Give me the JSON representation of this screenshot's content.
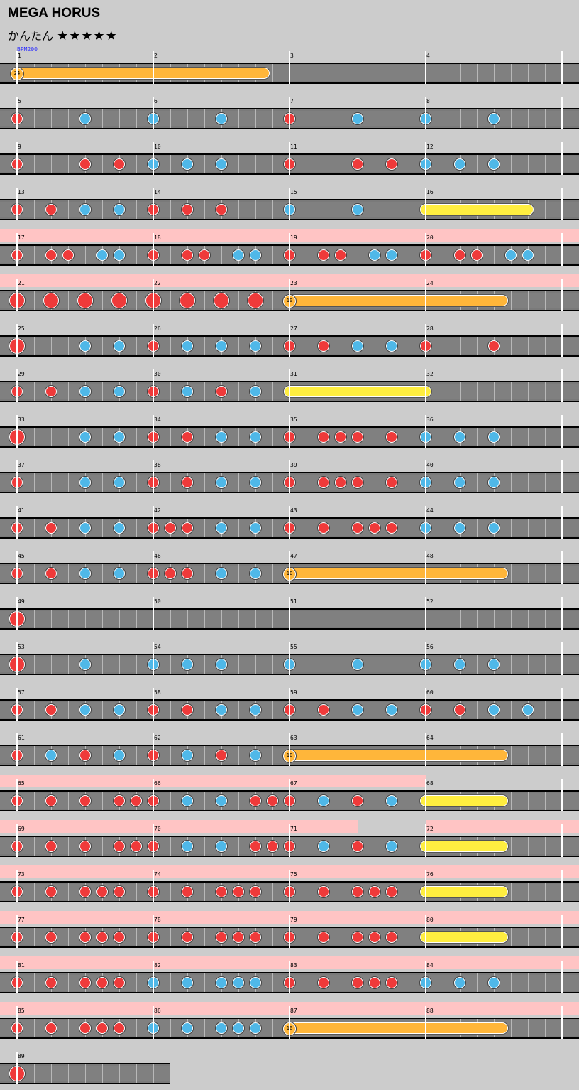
{
  "song": {
    "title": "MEGA HORUS",
    "difficulty": "かんたん",
    "stars": "★★★★★",
    "bpm_label": "BPM200"
  },
  "rows": [
    {
      "m": [
        1,
        2,
        3,
        4
      ],
      "gogo": [],
      "notes": [],
      "rolls": [
        {
          "type": "balloon",
          "s": 0,
          "e": 14.5,
          "count": "24"
        }
      ]
    },
    {
      "m": [
        5,
        6,
        7,
        8
      ],
      "gogo": [],
      "notes": [
        [
          0,
          "d"
        ],
        [
          4,
          "k"
        ],
        [
          8,
          "k"
        ],
        [
          12,
          "k"
        ],
        [
          16,
          "d"
        ],
        [
          20,
          "k"
        ],
        [
          24,
          "k"
        ],
        [
          28,
          "k"
        ]
      ],
      "rolls": []
    },
    {
      "m": [
        9,
        10,
        11,
        12
      ],
      "gogo": [],
      "notes": [
        [
          0,
          "d"
        ],
        [
          4,
          "d"
        ],
        [
          6,
          "d"
        ],
        [
          8,
          "k"
        ],
        [
          10,
          "k"
        ],
        [
          12,
          "k"
        ],
        [
          16,
          "d"
        ],
        [
          20,
          "d"
        ],
        [
          22,
          "d"
        ],
        [
          24,
          "k"
        ],
        [
          26,
          "k"
        ],
        [
          28,
          "k"
        ]
      ],
      "rolls": []
    },
    {
      "m": [
        13,
        14,
        15,
        16
      ],
      "gogo": [],
      "notes": [
        [
          0,
          "d"
        ],
        [
          2,
          "d"
        ],
        [
          4,
          "k"
        ],
        [
          6,
          "k"
        ],
        [
          8,
          "d"
        ],
        [
          10,
          "d"
        ],
        [
          12,
          "d"
        ],
        [
          16,
          "k"
        ],
        [
          20,
          "k"
        ]
      ],
      "rolls": [
        {
          "type": "drum",
          "s": 24,
          "e": 30
        }
      ]
    },
    {
      "m": [
        17,
        18,
        19,
        20
      ],
      "gogo": [
        [
          0,
          34
        ]
      ],
      "notes": [
        [
          0,
          "d"
        ],
        [
          2,
          "d"
        ],
        [
          3,
          "d"
        ],
        [
          5,
          "k"
        ],
        [
          6,
          "k"
        ],
        [
          8,
          "d"
        ],
        [
          10,
          "d"
        ],
        [
          11,
          "d"
        ],
        [
          13,
          "k"
        ],
        [
          14,
          "k"
        ],
        [
          16,
          "d"
        ],
        [
          18,
          "d"
        ],
        [
          19,
          "d"
        ],
        [
          21,
          "k"
        ],
        [
          22,
          "k"
        ],
        [
          24,
          "d"
        ],
        [
          26,
          "d"
        ],
        [
          27,
          "d"
        ],
        [
          29,
          "k"
        ],
        [
          30,
          "k"
        ]
      ],
      "rolls": []
    },
    {
      "m": [
        21,
        22,
        23,
        24
      ],
      "gogo": [
        [
          0,
          34
        ]
      ],
      "notes": [
        [
          0,
          "D"
        ],
        [
          2,
          "D"
        ],
        [
          4,
          "D"
        ],
        [
          6,
          "D"
        ],
        [
          8,
          "D"
        ],
        [
          10,
          "D"
        ],
        [
          12,
          "D"
        ],
        [
          14,
          "D"
        ]
      ],
      "rolls": [
        {
          "type": "balloon",
          "s": 16,
          "e": 28.5,
          "count": "10"
        }
      ]
    },
    {
      "m": [
        25,
        26,
        27,
        28
      ],
      "gogo": [],
      "notes": [
        [
          0,
          "D"
        ],
        [
          4,
          "k"
        ],
        [
          6,
          "k"
        ],
        [
          8,
          "d"
        ],
        [
          10,
          "k"
        ],
        [
          12,
          "k"
        ],
        [
          14,
          "k"
        ],
        [
          16,
          "d"
        ],
        [
          18,
          "d"
        ],
        [
          20,
          "k"
        ],
        [
          22,
          "k"
        ],
        [
          24,
          "d"
        ],
        [
          28,
          "d"
        ]
      ],
      "rolls": []
    },
    {
      "m": [
        29,
        30,
        31,
        32
      ],
      "gogo": [],
      "notes": [
        [
          0,
          "d"
        ],
        [
          2,
          "d"
        ],
        [
          4,
          "k"
        ],
        [
          6,
          "k"
        ],
        [
          8,
          "d"
        ],
        [
          10,
          "k"
        ],
        [
          12,
          "d"
        ],
        [
          14,
          "k"
        ]
      ],
      "rolls": [
        {
          "type": "drum",
          "s": 16,
          "e": 24
        }
      ]
    },
    {
      "m": [
        33,
        34,
        35,
        36
      ],
      "gogo": [],
      "notes": [
        [
          0,
          "D"
        ],
        [
          4,
          "k"
        ],
        [
          6,
          "k"
        ],
        [
          8,
          "d"
        ],
        [
          10,
          "d"
        ],
        [
          12,
          "k"
        ],
        [
          14,
          "k"
        ],
        [
          16,
          "d"
        ],
        [
          18,
          "d"
        ],
        [
          19,
          "d"
        ],
        [
          20,
          "d"
        ],
        [
          22,
          "d"
        ],
        [
          24,
          "k"
        ],
        [
          26,
          "k"
        ],
        [
          28,
          "k"
        ]
      ],
      "rolls": []
    },
    {
      "m": [
        37,
        38,
        39,
        40
      ],
      "gogo": [],
      "notes": [
        [
          0,
          "d"
        ],
        [
          4,
          "k"
        ],
        [
          6,
          "k"
        ],
        [
          8,
          "d"
        ],
        [
          10,
          "d"
        ],
        [
          12,
          "k"
        ],
        [
          14,
          "k"
        ],
        [
          16,
          "d"
        ],
        [
          18,
          "d"
        ],
        [
          19,
          "d"
        ],
        [
          20,
          "d"
        ],
        [
          22,
          "d"
        ],
        [
          24,
          "k"
        ],
        [
          26,
          "k"
        ],
        [
          28,
          "k"
        ]
      ],
      "rolls": []
    },
    {
      "m": [
        41,
        42,
        43,
        44
      ],
      "gogo": [],
      "notes": [
        [
          0,
          "d"
        ],
        [
          2,
          "d"
        ],
        [
          4,
          "k"
        ],
        [
          6,
          "k"
        ],
        [
          8,
          "d"
        ],
        [
          9,
          "d"
        ],
        [
          10,
          "d"
        ],
        [
          12,
          "k"
        ],
        [
          14,
          "k"
        ],
        [
          16,
          "d"
        ],
        [
          18,
          "d"
        ],
        [
          20,
          "d"
        ],
        [
          21,
          "d"
        ],
        [
          22,
          "d"
        ],
        [
          24,
          "k"
        ],
        [
          26,
          "k"
        ],
        [
          28,
          "k"
        ]
      ],
      "rolls": []
    },
    {
      "m": [
        45,
        46,
        47,
        48
      ],
      "gogo": [],
      "notes": [
        [
          0,
          "d"
        ],
        [
          2,
          "d"
        ],
        [
          4,
          "k"
        ],
        [
          6,
          "k"
        ],
        [
          8,
          "d"
        ],
        [
          9,
          "d"
        ],
        [
          10,
          "d"
        ],
        [
          12,
          "k"
        ],
        [
          14,
          "k"
        ]
      ],
      "rolls": [
        {
          "type": "balloon",
          "s": 16,
          "e": 28.5,
          "count": "10"
        }
      ]
    },
    {
      "m": [
        49,
        50,
        51,
        52
      ],
      "gogo": [],
      "notes": [
        [
          0,
          "D"
        ]
      ],
      "rolls": []
    },
    {
      "m": [
        53,
        54,
        55,
        56
      ],
      "gogo": [],
      "notes": [
        [
          0,
          "D"
        ],
        [
          4,
          "k"
        ],
        [
          8,
          "k"
        ],
        [
          10,
          "k"
        ],
        [
          12,
          "k"
        ],
        [
          16,
          "k"
        ],
        [
          20,
          "k"
        ],
        [
          24,
          "k"
        ],
        [
          26,
          "k"
        ],
        [
          28,
          "k"
        ]
      ],
      "rolls": []
    },
    {
      "m": [
        57,
        58,
        59,
        60
      ],
      "gogo": [],
      "notes": [
        [
          0,
          "d"
        ],
        [
          2,
          "d"
        ],
        [
          4,
          "k"
        ],
        [
          6,
          "k"
        ],
        [
          8,
          "d"
        ],
        [
          10,
          "d"
        ],
        [
          12,
          "k"
        ],
        [
          14,
          "k"
        ],
        [
          16,
          "d"
        ],
        [
          18,
          "d"
        ],
        [
          20,
          "k"
        ],
        [
          22,
          "k"
        ],
        [
          24,
          "d"
        ],
        [
          26,
          "d"
        ],
        [
          28,
          "k"
        ],
        [
          30,
          "k"
        ]
      ],
      "rolls": []
    },
    {
      "m": [
        61,
        62,
        63,
        64
      ],
      "gogo": [],
      "notes": [
        [
          0,
          "d"
        ],
        [
          2,
          "k"
        ],
        [
          4,
          "d"
        ],
        [
          6,
          "k"
        ],
        [
          8,
          "d"
        ],
        [
          10,
          "k"
        ],
        [
          12,
          "d"
        ],
        [
          14,
          "k"
        ]
      ],
      "rolls": [
        {
          "type": "balloon",
          "s": 16,
          "e": 28.5,
          "count": "10"
        }
      ]
    },
    {
      "m": [
        65,
        66,
        67,
        68
      ],
      "gogo": [
        [
          0,
          24
        ]
      ],
      "notes": [
        [
          0,
          "d"
        ],
        [
          2,
          "d"
        ],
        [
          4,
          "d"
        ],
        [
          6,
          "d"
        ],
        [
          7,
          "d"
        ],
        [
          8,
          "d"
        ],
        [
          10,
          "k"
        ],
        [
          12,
          "k"
        ],
        [
          14,
          "d"
        ],
        [
          15,
          "d"
        ],
        [
          16,
          "d"
        ],
        [
          18,
          "k"
        ],
        [
          20,
          "d"
        ],
        [
          22,
          "k"
        ]
      ],
      "rolls": [
        {
          "type": "drum",
          "s": 24,
          "e": 28.5
        }
      ]
    },
    {
      "m": [
        69,
        70,
        71,
        72
      ],
      "gogo": [
        [
          0,
          20
        ],
        [
          24,
          34
        ]
      ],
      "notes": [
        [
          0,
          "d"
        ],
        [
          2,
          "d"
        ],
        [
          4,
          "d"
        ],
        [
          6,
          "d"
        ],
        [
          7,
          "d"
        ],
        [
          8,
          "d"
        ],
        [
          10,
          "k"
        ],
        [
          12,
          "k"
        ],
        [
          14,
          "d"
        ],
        [
          15,
          "d"
        ],
        [
          16,
          "d"
        ],
        [
          18,
          "k"
        ],
        [
          20,
          "d"
        ],
        [
          22,
          "k"
        ]
      ],
      "rolls": [
        {
          "type": "drum",
          "s": 24,
          "e": 28.5
        }
      ]
    },
    {
      "m": [
        73,
        74,
        75,
        76
      ],
      "gogo": [
        [
          0,
          34
        ]
      ],
      "notes": [
        [
          0,
          "d"
        ],
        [
          2,
          "d"
        ],
        [
          4,
          "d"
        ],
        [
          5,
          "d"
        ],
        [
          6,
          "d"
        ],
        [
          8,
          "d"
        ],
        [
          10,
          "d"
        ],
        [
          12,
          "d"
        ],
        [
          13,
          "d"
        ],
        [
          14,
          "d"
        ],
        [
          16,
          "d"
        ],
        [
          18,
          "d"
        ],
        [
          20,
          "d"
        ],
        [
          21,
          "d"
        ],
        [
          22,
          "d"
        ]
      ],
      "rolls": [
        {
          "type": "drum",
          "s": 24,
          "e": 28.5
        }
      ]
    },
    {
      "m": [
        77,
        78,
        79,
        80
      ],
      "gogo": [
        [
          0,
          34
        ]
      ],
      "notes": [
        [
          0,
          "d"
        ],
        [
          2,
          "d"
        ],
        [
          4,
          "d"
        ],
        [
          5,
          "d"
        ],
        [
          6,
          "d"
        ],
        [
          8,
          "d"
        ],
        [
          10,
          "d"
        ],
        [
          12,
          "d"
        ],
        [
          13,
          "d"
        ],
        [
          14,
          "d"
        ],
        [
          16,
          "d"
        ],
        [
          18,
          "d"
        ],
        [
          20,
          "d"
        ],
        [
          21,
          "d"
        ],
        [
          22,
          "d"
        ]
      ],
      "rolls": [
        {
          "type": "drum",
          "s": 24,
          "e": 28.5
        }
      ]
    },
    {
      "m": [
        81,
        82,
        83,
        84
      ],
      "gogo": [
        [
          0,
          34
        ]
      ],
      "notes": [
        [
          0,
          "d"
        ],
        [
          2,
          "d"
        ],
        [
          4,
          "d"
        ],
        [
          5,
          "d"
        ],
        [
          6,
          "d"
        ],
        [
          8,
          "k"
        ],
        [
          10,
          "k"
        ],
        [
          12,
          "k"
        ],
        [
          13,
          "k"
        ],
        [
          14,
          "k"
        ],
        [
          16,
          "d"
        ],
        [
          18,
          "d"
        ],
        [
          20,
          "d"
        ],
        [
          21,
          "d"
        ],
        [
          22,
          "d"
        ],
        [
          24,
          "k"
        ],
        [
          26,
          "k"
        ],
        [
          28,
          "k"
        ]
      ],
      "rolls": []
    },
    {
      "m": [
        85,
        86,
        87,
        88
      ],
      "gogo": [
        [
          0,
          34
        ]
      ],
      "notes": [
        [
          0,
          "d"
        ],
        [
          2,
          "d"
        ],
        [
          4,
          "d"
        ],
        [
          5,
          "d"
        ],
        [
          6,
          "d"
        ],
        [
          8,
          "k"
        ],
        [
          10,
          "k"
        ],
        [
          12,
          "k"
        ],
        [
          13,
          "k"
        ],
        [
          14,
          "k"
        ]
      ],
      "rolls": [
        {
          "type": "balloon",
          "s": 16,
          "e": 28.5,
          "count": "10"
        }
      ]
    },
    {
      "m": [
        89
      ],
      "gogo": [],
      "notes": [
        [
          0,
          "D"
        ]
      ],
      "rolls": [],
      "short": true
    }
  ]
}
